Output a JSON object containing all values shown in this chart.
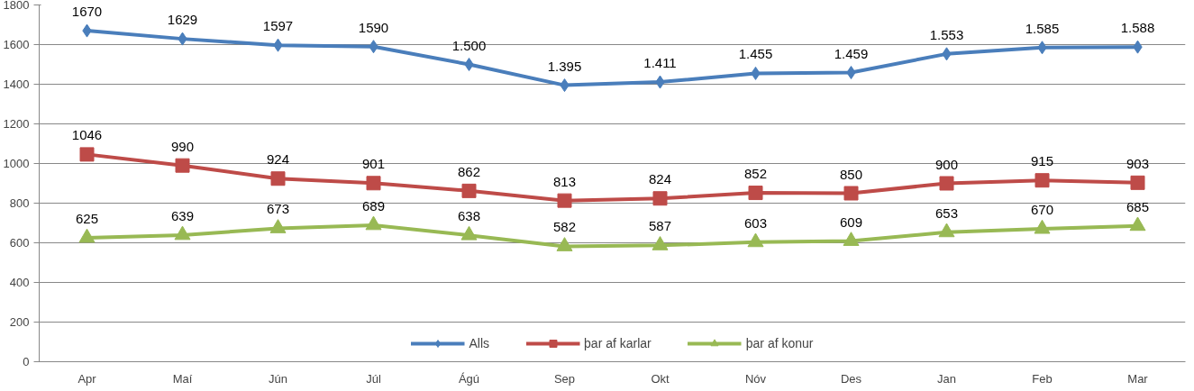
{
  "chart_data": {
    "type": "line",
    "categories": [
      "Apr",
      "Maí",
      "Jún",
      "Júl",
      "Ágú",
      "Sep",
      "Okt",
      "Nóv",
      "Des",
      "Jan",
      "Feb",
      "Mar"
    ],
    "ylim": [
      0,
      1800
    ],
    "yticks": [
      0,
      200,
      400,
      600,
      800,
      1000,
      1200,
      1400,
      1600,
      1800
    ],
    "grid": "y",
    "legend": "bottom",
    "line_style": "solid",
    "series": [
      {
        "name": "Alls",
        "color": "#4a7ebb",
        "marker": "diamond",
        "values": [
          1670,
          1629,
          1597,
          1590,
          1500,
          1395,
          1411,
          1455,
          1459,
          1553,
          1585,
          1588
        ],
        "value_labels": [
          "1670",
          "1629",
          "1597",
          "1590",
          "1.500",
          "1.395",
          "1.411",
          "1.455",
          "1.459",
          "1.553",
          "1.585",
          "1.588"
        ]
      },
      {
        "name": "þar af karlar",
        "color": "#be4b48",
        "marker": "square",
        "values": [
          1046,
          990,
          924,
          901,
          862,
          813,
          824,
          852,
          850,
          900,
          915,
          903
        ],
        "value_labels": [
          "1046",
          "990",
          "924",
          "901",
          "862",
          "813",
          "824",
          "852",
          "850",
          "900",
          "915",
          "903"
        ]
      },
      {
        "name": "þar af konur",
        "color": "#98b954",
        "marker": "triangle",
        "values": [
          625,
          639,
          673,
          689,
          638,
          582,
          587,
          603,
          609,
          653,
          670,
          685
        ],
        "value_labels": [
          "625",
          "639",
          "673",
          "689",
          "638",
          "582",
          "587",
          "603",
          "609",
          "653",
          "670",
          "685"
        ]
      }
    ]
  }
}
